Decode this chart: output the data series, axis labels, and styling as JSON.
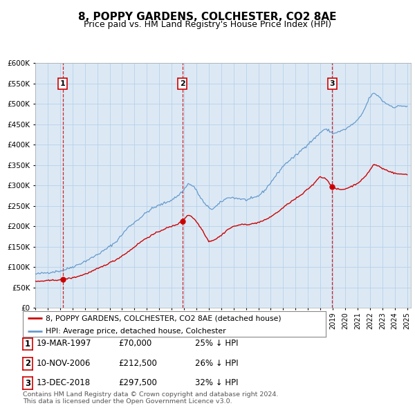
{
  "title": "8, POPPY GARDENS, COLCHESTER, CO2 8AE",
  "subtitle": "Price paid vs. HM Land Registry's House Price Index (HPI)",
  "legend_line1": "8, POPPY GARDENS, COLCHESTER, CO2 8AE (detached house)",
  "legend_line2": "HPI: Average price, detached house, Colchester",
  "footer1": "Contains HM Land Registry data © Crown copyright and database right 2024.",
  "footer2": "This data is licensed under the Open Government Licence v3.0.",
  "table": [
    [
      "1",
      "19-MAR-1997",
      "£70,000",
      "25% ↓ HPI"
    ],
    [
      "2",
      "10-NOV-2006",
      "£212,500",
      "26% ↓ HPI"
    ],
    [
      "3",
      "13-DEC-2018",
      "£297,500",
      "32% ↓ HPI"
    ]
  ],
  "sale_dates": [
    1997.21,
    2006.86,
    2018.95
  ],
  "sale_values": [
    70000,
    212500,
    297500
  ],
  "sale_labels": [
    "1",
    "2",
    "3"
  ],
  "ylim": [
    0,
    600000
  ],
  "yticks": [
    0,
    50000,
    100000,
    150000,
    200000,
    250000,
    300000,
    350000,
    400000,
    450000,
    500000,
    550000,
    600000
  ],
  "bg_color": "#dce9f5",
  "grid_color": "#b8d0e8",
  "red_color": "#cc0000",
  "blue_color": "#6699cc",
  "title_fontsize": 11,
  "subtitle_fontsize": 9.5,
  "hpi_keypoints": [
    [
      1995.0,
      83000
    ],
    [
      1996.0,
      87000
    ],
    [
      1997.0,
      91000
    ],
    [
      1997.5,
      95000
    ],
    [
      1998.5,
      107000
    ],
    [
      1999.5,
      122000
    ],
    [
      2000.5,
      140000
    ],
    [
      2001.5,
      162000
    ],
    [
      2002.0,
      180000
    ],
    [
      2002.5,
      198000
    ],
    [
      2003.0,
      210000
    ],
    [
      2003.5,
      222000
    ],
    [
      2004.0,
      235000
    ],
    [
      2004.5,
      245000
    ],
    [
      2005.0,
      252000
    ],
    [
      2005.5,
      258000
    ],
    [
      2006.0,
      265000
    ],
    [
      2006.5,
      275000
    ],
    [
      2007.0,
      290000
    ],
    [
      2007.3,
      305000
    ],
    [
      2007.8,
      298000
    ],
    [
      2008.3,
      272000
    ],
    [
      2008.8,
      250000
    ],
    [
      2009.3,
      242000
    ],
    [
      2009.7,
      252000
    ],
    [
      2010.2,
      265000
    ],
    [
      2010.7,
      272000
    ],
    [
      2011.0,
      270000
    ],
    [
      2011.5,
      268000
    ],
    [
      2012.0,
      265000
    ],
    [
      2012.5,
      268000
    ],
    [
      2013.0,
      275000
    ],
    [
      2013.5,
      288000
    ],
    [
      2014.0,
      308000
    ],
    [
      2014.5,
      328000
    ],
    [
      2015.0,
      348000
    ],
    [
      2015.5,
      362000
    ],
    [
      2016.0,
      373000
    ],
    [
      2016.5,
      388000
    ],
    [
      2017.0,
      402000
    ],
    [
      2017.5,
      415000
    ],
    [
      2018.0,
      430000
    ],
    [
      2018.3,
      438000
    ],
    [
      2018.7,
      435000
    ],
    [
      2019.0,
      428000
    ],
    [
      2019.5,
      432000
    ],
    [
      2020.0,
      438000
    ],
    [
      2020.5,
      448000
    ],
    [
      2021.0,
      460000
    ],
    [
      2021.3,
      472000
    ],
    [
      2021.6,
      490000
    ],
    [
      2022.0,
      518000
    ],
    [
      2022.3,
      526000
    ],
    [
      2022.7,
      520000
    ],
    [
      2023.0,
      508000
    ],
    [
      2023.5,
      498000
    ],
    [
      2024.0,
      492000
    ],
    [
      2024.5,
      496000
    ],
    [
      2025.0,
      494000
    ]
  ],
  "pp_keypoints": [
    [
      1995.0,
      65000
    ],
    [
      1996.0,
      67000
    ],
    [
      1997.21,
      70000
    ],
    [
      1997.5,
      71500
    ],
    [
      1998.0,
      74000
    ],
    [
      1998.5,
      78000
    ],
    [
      1999.0,
      83000
    ],
    [
      1999.5,
      89000
    ],
    [
      2000.0,
      96000
    ],
    [
      2000.5,
      103000
    ],
    [
      2001.0,
      111000
    ],
    [
      2001.5,
      118000
    ],
    [
      2002.0,
      128000
    ],
    [
      2002.5,
      138000
    ],
    [
      2003.0,
      150000
    ],
    [
      2003.5,
      162000
    ],
    [
      2004.0,
      172000
    ],
    [
      2004.5,
      180000
    ],
    [
      2005.0,
      188000
    ],
    [
      2005.5,
      195000
    ],
    [
      2006.0,
      200000
    ],
    [
      2006.5,
      206000
    ],
    [
      2006.86,
      212500
    ],
    [
      2007.0,
      218000
    ],
    [
      2007.3,
      228000
    ],
    [
      2007.6,
      225000
    ],
    [
      2008.0,
      212000
    ],
    [
      2008.5,
      190000
    ],
    [
      2009.0,
      163000
    ],
    [
      2009.5,
      168000
    ],
    [
      2010.0,
      178000
    ],
    [
      2010.5,
      192000
    ],
    [
      2011.0,
      200000
    ],
    [
      2011.5,
      204000
    ],
    [
      2012.0,
      205000
    ],
    [
      2012.5,
      206000
    ],
    [
      2013.0,
      210000
    ],
    [
      2013.5,
      215000
    ],
    [
      2014.0,
      224000
    ],
    [
      2014.5,
      234000
    ],
    [
      2015.0,
      246000
    ],
    [
      2015.5,
      258000
    ],
    [
      2016.0,
      268000
    ],
    [
      2016.5,
      278000
    ],
    [
      2017.0,
      292000
    ],
    [
      2017.5,
      305000
    ],
    [
      2017.8,
      318000
    ],
    [
      2018.0,
      322000
    ],
    [
      2018.5,
      316000
    ],
    [
      2018.95,
      297500
    ],
    [
      2019.0,
      296000
    ],
    [
      2019.3,
      292000
    ],
    [
      2019.7,
      290000
    ],
    [
      2020.0,
      292000
    ],
    [
      2020.5,
      298000
    ],
    [
      2021.0,
      306000
    ],
    [
      2021.5,
      318000
    ],
    [
      2022.0,
      338000
    ],
    [
      2022.3,
      352000
    ],
    [
      2022.7,
      348000
    ],
    [
      2023.0,
      342000
    ],
    [
      2023.5,
      336000
    ],
    [
      2024.0,
      330000
    ],
    [
      2024.5,
      328000
    ],
    [
      2025.0,
      328000
    ]
  ]
}
